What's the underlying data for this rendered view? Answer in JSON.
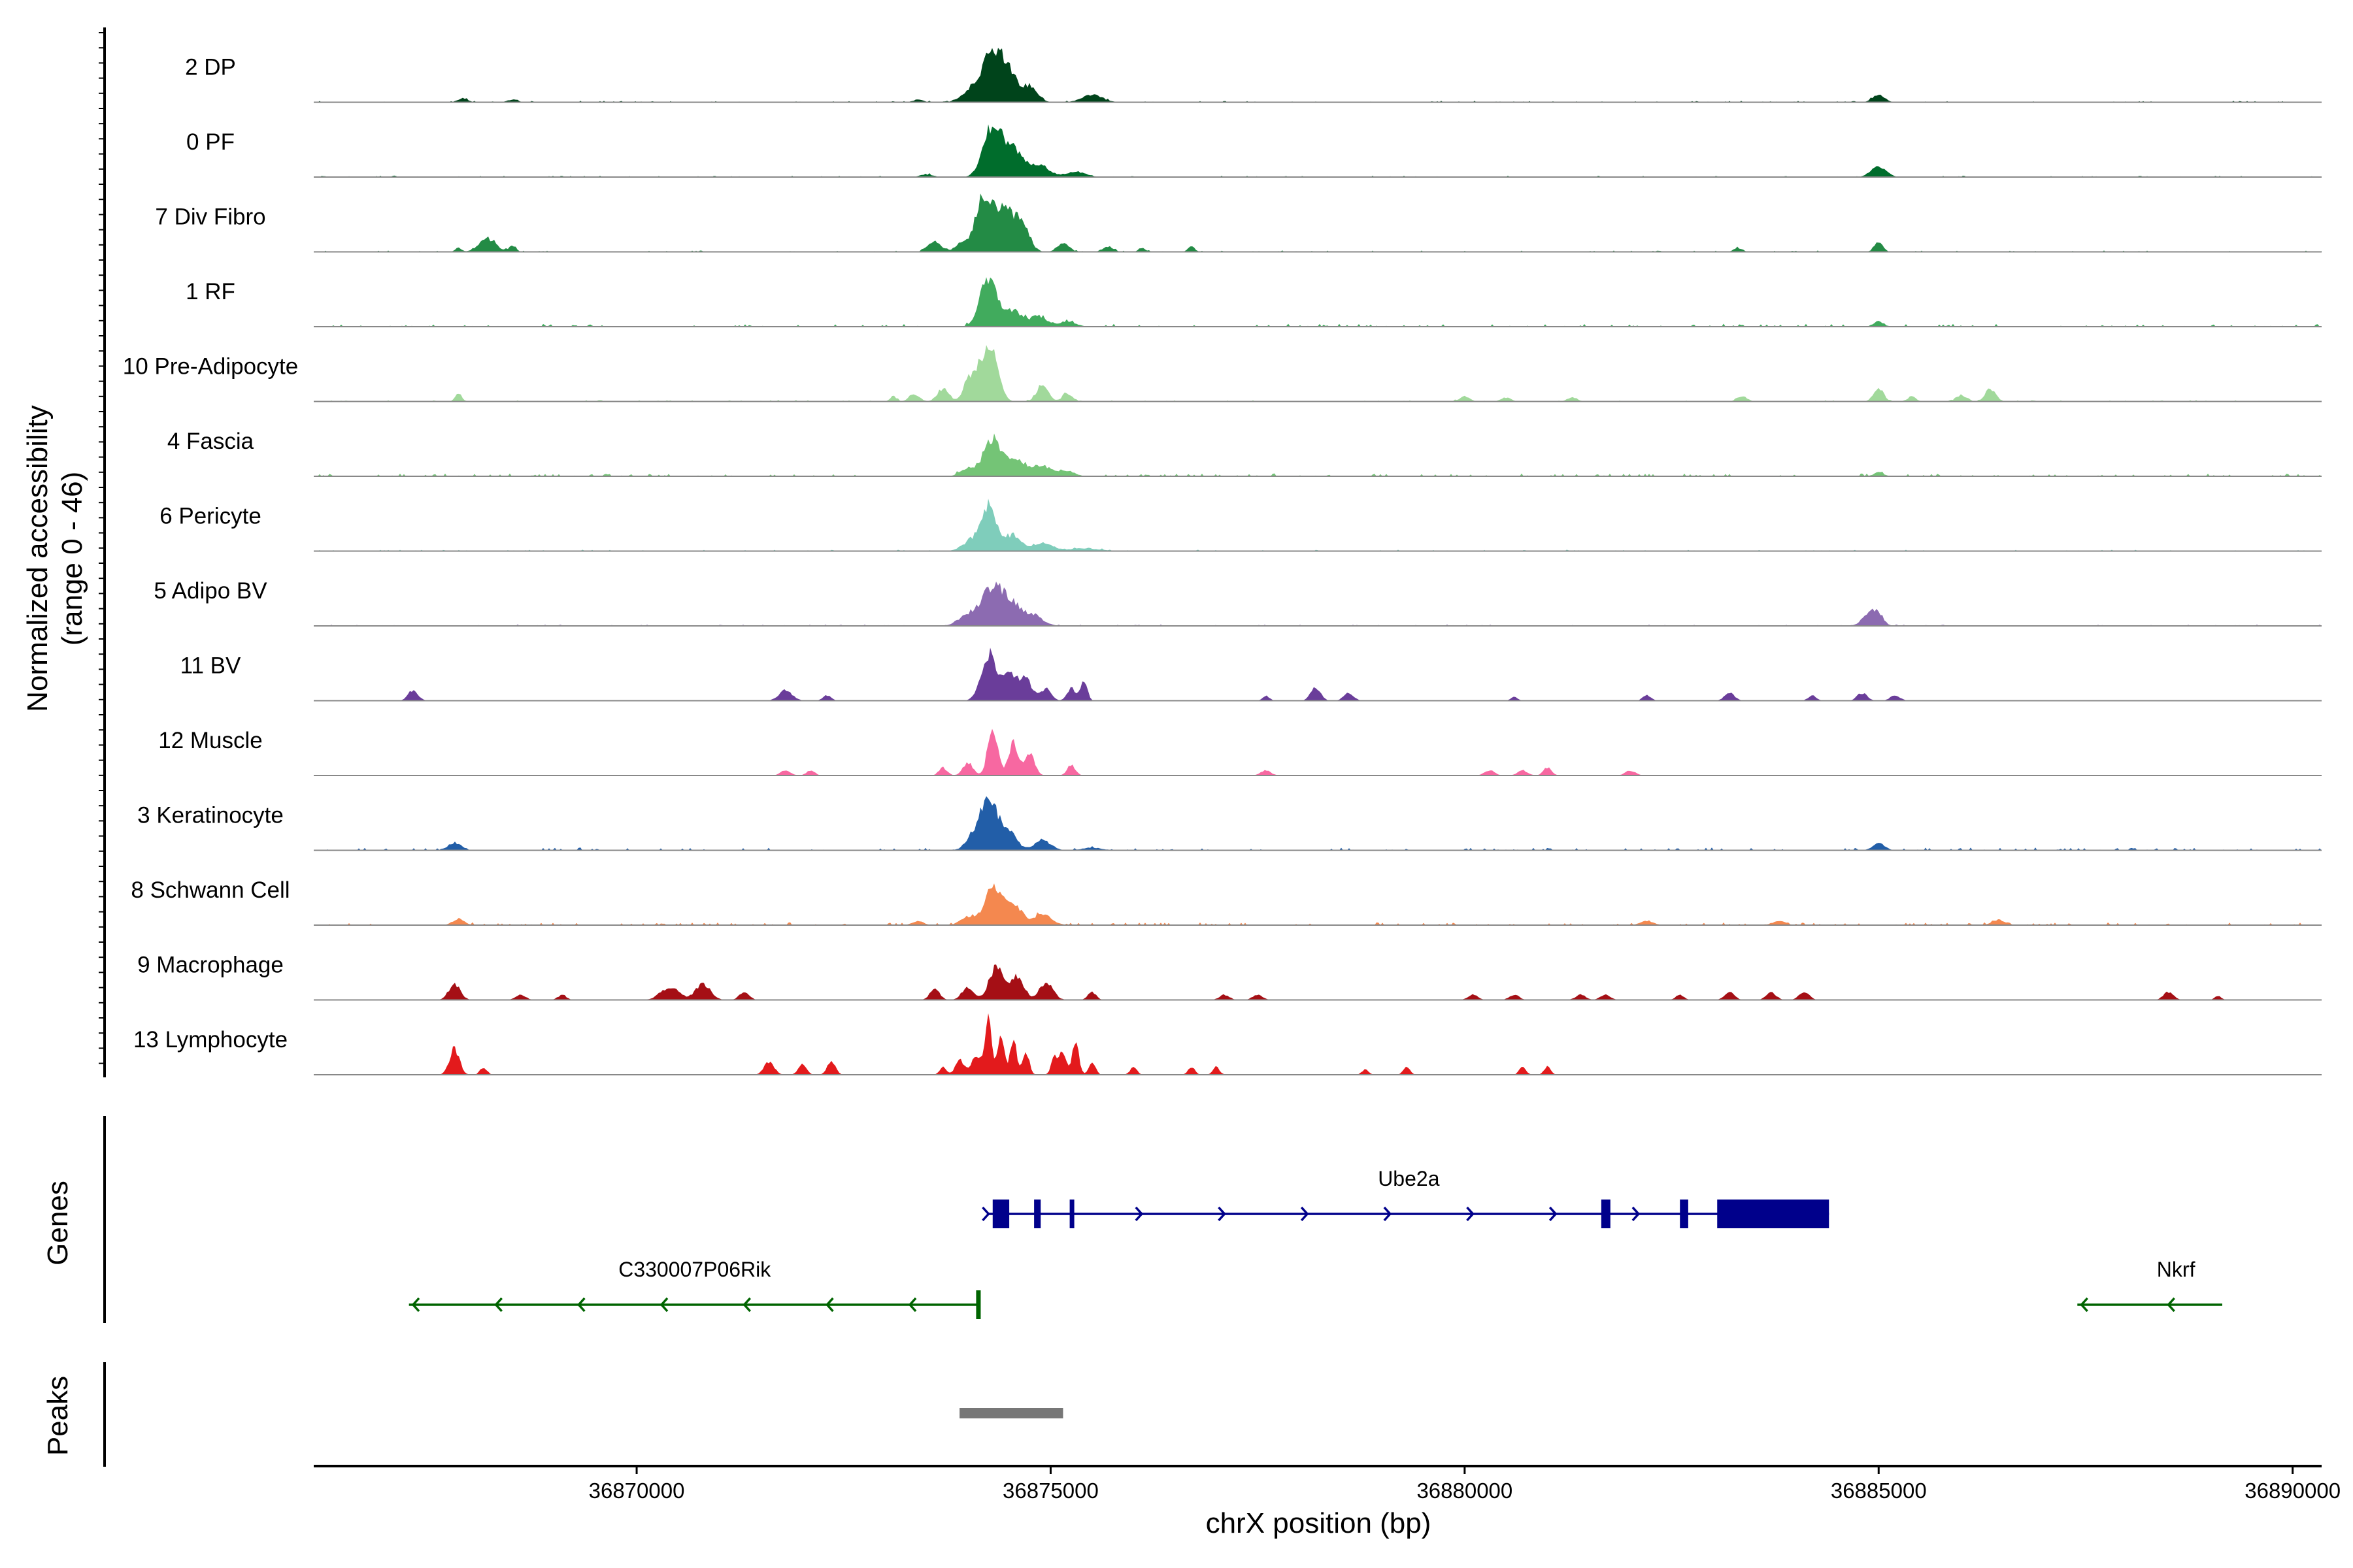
{
  "chart_data": {
    "type": "area",
    "chromosome": "chrX",
    "region": [
      36866100,
      36890350
    ],
    "y_axis_title": [
      "Normalized accessibility",
      "(range 0 - 46)"
    ],
    "y_range": [
      0,
      46
    ],
    "x_axis_title": "chrX position (bp)",
    "x_ticks": [
      36870000,
      36875000,
      36880000,
      36885000,
      36890000
    ],
    "x_tick_labels": [
      "36870000",
      "36875000",
      "36880000",
      "36885000",
      "36890000"
    ],
    "panels": {
      "genes": "Genes",
      "peaks": "Peaks"
    },
    "tracks": [
      {
        "label": "2 DP",
        "color": "#00441b",
        "peaks": [
          [
            36874300,
            36,
            130
          ],
          [
            36874500,
            18,
            100
          ],
          [
            36874750,
            12,
            90
          ],
          [
            36874050,
            8,
            120
          ],
          [
            36875500,
            6,
            120
          ],
          [
            36885000,
            6,
            70
          ],
          [
            36867900,
            3,
            60
          ],
          [
            36868500,
            2,
            60
          ],
          [
            36873400,
            2,
            60
          ]
        ],
        "baseline": 1
      },
      {
        "label": "0 PF",
        "color": "#006d2c",
        "peaks": [
          [
            36874300,
            40,
            110
          ],
          [
            36874550,
            20,
            110
          ],
          [
            36874850,
            10,
            120
          ],
          [
            36875300,
            4,
            120
          ],
          [
            36885000,
            8,
            90
          ],
          [
            36873500,
            2,
            80
          ]
        ],
        "baseline": 1
      },
      {
        "label": "7 Div Fibro",
        "color": "#238b45",
        "peaks": [
          [
            36874200,
            44,
            110
          ],
          [
            36874450,
            32,
            90
          ],
          [
            36874650,
            22,
            90
          ],
          [
            36873600,
            8,
            80
          ],
          [
            36873900,
            6,
            60
          ],
          [
            36875150,
            7,
            70
          ],
          [
            36868200,
            10,
            100
          ],
          [
            36868500,
            5,
            40
          ],
          [
            36867850,
            3,
            40
          ],
          [
            36876700,
            4,
            40
          ],
          [
            36875700,
            4,
            60
          ],
          [
            36876100,
            3,
            40
          ],
          [
            36884999,
            8,
            50
          ],
          [
            36883300,
            3,
            50
          ]
        ],
        "baseline": 1
      },
      {
        "label": "1 RF",
        "color": "#41ab5d",
        "peaks": [
          [
            36874250,
            38,
            100
          ],
          [
            36874550,
            12,
            100
          ],
          [
            36874850,
            8,
            100
          ],
          [
            36875200,
            4,
            100
          ],
          [
            36885000,
            4,
            60
          ]
        ],
        "baseline": 2
      },
      {
        "label": "10 Pre-Adipocyte",
        "color": "#a1d99b",
        "peaks": [
          [
            36874300,
            40,
            80
          ],
          [
            36874150,
            26,
            70
          ],
          [
            36874000,
            16,
            60
          ],
          [
            36873700,
            10,
            70
          ],
          [
            36873350,
            6,
            60
          ],
          [
            36874900,
            12,
            70
          ],
          [
            36875200,
            6,
            60
          ],
          [
            36873100,
            4,
            40
          ],
          [
            36867850,
            6,
            40
          ],
          [
            36885000,
            10,
            60
          ],
          [
            36885400,
            4,
            50
          ],
          [
            36886350,
            10,
            60
          ],
          [
            36886000,
            5,
            60
          ],
          [
            36883350,
            4,
            60
          ],
          [
            36880000,
            4,
            60
          ],
          [
            36880500,
            3,
            60
          ],
          [
            36881300,
            3,
            60
          ]
        ],
        "baseline": 1
      },
      {
        "label": "4 Fascia",
        "color": "#74c476",
        "peaks": [
          [
            36874300,
            28,
            110
          ],
          [
            36874600,
            12,
            110
          ],
          [
            36874900,
            8,
            110
          ],
          [
            36874000,
            6,
            90
          ],
          [
            36875200,
            4,
            90
          ],
          [
            36885000,
            3,
            60
          ]
        ],
        "baseline": 2
      },
      {
        "label": "6 Pericyte",
        "color": "#7fcdbb",
        "peaks": [
          [
            36874250,
            36,
            100
          ],
          [
            36874550,
            12,
            90
          ],
          [
            36874900,
            6,
            120
          ],
          [
            36874000,
            6,
            90
          ],
          [
            36875400,
            2,
            200
          ]
        ],
        "baseline": 1
      },
      {
        "label": "5 Adipo BV",
        "color": "#8c6bb1",
        "peaks": [
          [
            36874300,
            30,
            130
          ],
          [
            36874550,
            14,
            110
          ],
          [
            36874800,
            8,
            110
          ],
          [
            36874000,
            8,
            110
          ],
          [
            36884900,
            10,
            90
          ],
          [
            36885000,
            6,
            60
          ]
        ],
        "baseline": 1
      },
      {
        "label": "11 BV",
        "color": "#6a3d9a",
        "peaks": [
          [
            36874250,
            36,
            90
          ],
          [
            36874500,
            22,
            80
          ],
          [
            36874700,
            16,
            80
          ],
          [
            36874950,
            10,
            60
          ],
          [
            36875250,
            10,
            50
          ],
          [
            36875400,
            16,
            40
          ],
          [
            36867300,
            8,
            60
          ],
          [
            36871800,
            8,
            80
          ],
          [
            36872300,
            4,
            50
          ],
          [
            36878200,
            10,
            60
          ],
          [
            36878600,
            6,
            60
          ],
          [
            36877600,
            4,
            40
          ],
          [
            36882200,
            4,
            50
          ],
          [
            36883200,
            6,
            60
          ],
          [
            36884800,
            6,
            60
          ],
          [
            36885200,
            4,
            60
          ],
          [
            36884200,
            4,
            50
          ],
          [
            36880600,
            3,
            40
          ]
        ],
        "baseline": 0
      },
      {
        "label": "12 Muscle",
        "color": "#f768a1",
        "peaks": [
          [
            36874300,
            36,
            60
          ],
          [
            36874550,
            26,
            60
          ],
          [
            36874750,
            16,
            60
          ],
          [
            36874000,
            10,
            60
          ],
          [
            36875250,
            8,
            50
          ],
          [
            36873700,
            6,
            50
          ],
          [
            36871800,
            4,
            60
          ],
          [
            36872100,
            4,
            50
          ],
          [
            36877600,
            4,
            60
          ],
          [
            36880300,
            4,
            60
          ],
          [
            36880700,
            4,
            60
          ],
          [
            36881000,
            6,
            50
          ],
          [
            36882000,
            4,
            60
          ]
        ],
        "baseline": 0
      },
      {
        "label": "3 Keratinocyte",
        "color": "#225ea8",
        "peaks": [
          [
            36874250,
            40,
            110
          ],
          [
            36874500,
            14,
            90
          ],
          [
            36874900,
            8,
            100
          ],
          [
            36874050,
            6,
            90
          ],
          [
            36867800,
            6,
            80
          ],
          [
            36885000,
            6,
            70
          ],
          [
            36875500,
            2,
            120
          ]
        ],
        "baseline": 2
      },
      {
        "label": "8 Schwann Cell",
        "color": "#f4884f",
        "peaks": [
          [
            36874300,
            30,
            100
          ],
          [
            36874550,
            16,
            100
          ],
          [
            36874900,
            8,
            110
          ],
          [
            36874000,
            6,
            90
          ],
          [
            36867850,
            5,
            70
          ],
          [
            36886450,
            4,
            80
          ],
          [
            36873400,
            3,
            70
          ],
          [
            36883800,
            3,
            80
          ],
          [
            36882200,
            3,
            80
          ]
        ],
        "baseline": 2
      },
      {
        "label": "9 Macrophage",
        "color": "#a50f15",
        "peaks": [
          [
            36874350,
            26,
            90
          ],
          [
            36874600,
            18,
            80
          ],
          [
            36874950,
            14,
            80
          ],
          [
            36874000,
            10,
            70
          ],
          [
            36873600,
            8,
            60
          ],
          [
            36870400,
            10,
            110
          ],
          [
            36870800,
            12,
            90
          ],
          [
            36871300,
            6,
            60
          ],
          [
            36867800,
            12,
            70
          ],
          [
            36868600,
            4,
            60
          ],
          [
            36869100,
            4,
            50
          ],
          [
            36875500,
            6,
            50
          ],
          [
            36877500,
            4,
            60
          ],
          [
            36877100,
            4,
            60
          ],
          [
            36880100,
            4,
            60
          ],
          [
            36880600,
            4,
            60
          ],
          [
            36881400,
            4,
            60
          ],
          [
            36881700,
            4,
            60
          ],
          [
            36882600,
            4,
            50
          ],
          [
            36883200,
            6,
            60
          ],
          [
            36883700,
            6,
            60
          ],
          [
            36884100,
            6,
            60
          ],
          [
            36888500,
            6,
            60
          ],
          [
            36889100,
            3,
            40
          ]
        ],
        "baseline": 0
      },
      {
        "label": "13 Lymphocyte",
        "color": "#e31a1c",
        "peaks": [
          [
            36874250,
            46,
            40
          ],
          [
            36874400,
            30,
            40
          ],
          [
            36874550,
            26,
            40
          ],
          [
            36874700,
            18,
            40
          ],
          [
            36874100,
            14,
            60
          ],
          [
            36873900,
            12,
            50
          ],
          [
            36875300,
            26,
            40
          ],
          [
            36875150,
            18,
            40
          ],
          [
            36875050,
            14,
            40
          ],
          [
            36875500,
            10,
            40
          ],
          [
            36867800,
            20,
            60
          ],
          [
            36868150,
            6,
            40
          ],
          [
            36871600,
            10,
            60
          ],
          [
            36872000,
            8,
            50
          ],
          [
            36872350,
            10,
            50
          ],
          [
            36873700,
            6,
            40
          ],
          [
            36876000,
            6,
            40
          ],
          [
            36876700,
            6,
            40
          ],
          [
            36877000,
            6,
            40
          ],
          [
            36878800,
            4,
            40
          ],
          [
            36879300,
            6,
            40
          ],
          [
            36880700,
            6,
            40
          ],
          [
            36881000,
            6,
            40
          ]
        ],
        "baseline": 0
      }
    ],
    "genes": [
      {
        "name": "Ube2a",
        "strand": "+",
        "start": 36874250,
        "end": 36884400,
        "color": "#00008b",
        "exons": [
          [
            36874300,
            36874500
          ],
          [
            36874800,
            36874880
          ],
          [
            36875230,
            36875260
          ],
          [
            36881650,
            36881760
          ],
          [
            36882600,
            36882700
          ],
          [
            36883050,
            36884400
          ]
        ],
        "arrows": [
          36874250,
          36876100,
          36877100,
          36878100,
          36879100,
          36880100,
          36881100,
          36882100
        ]
      },
      {
        "name": "C330007P06Rik",
        "strand": "-",
        "start": 36867250,
        "end": 36874150,
        "color": "#006400",
        "exons": [
          [
            36874100,
            36874150
          ]
        ],
        "arrows": [
          36867300,
          36868300,
          36869300,
          36870300,
          36871300,
          36872300,
          36873300
        ]
      },
      {
        "name": "Nkrf",
        "strand": "-",
        "start": 36887400,
        "end": 36889150,
        "color": "#006400",
        "exons": [],
        "arrows": [
          36887450,
          36888500
        ]
      }
    ],
    "peak_regions": [
      [
        36873900,
        36875150
      ]
    ],
    "peak_color": "#777777"
  }
}
